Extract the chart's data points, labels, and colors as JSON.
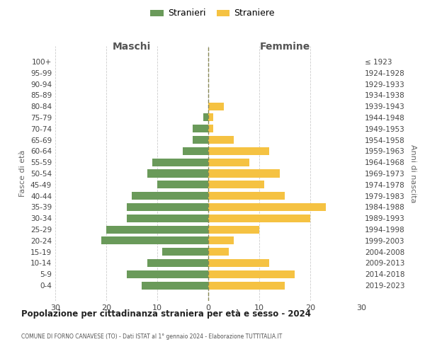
{
  "age_groups": [
    "100+",
    "95-99",
    "90-94",
    "85-89",
    "80-84",
    "75-79",
    "70-74",
    "65-69",
    "60-64",
    "55-59",
    "50-54",
    "45-49",
    "40-44",
    "35-39",
    "30-34",
    "25-29",
    "20-24",
    "15-19",
    "10-14",
    "5-9",
    "0-4"
  ],
  "birth_years": [
    "≤ 1923",
    "1924-1928",
    "1929-1933",
    "1934-1938",
    "1939-1943",
    "1944-1948",
    "1949-1953",
    "1954-1958",
    "1959-1963",
    "1964-1968",
    "1969-1973",
    "1974-1978",
    "1979-1983",
    "1984-1988",
    "1989-1993",
    "1994-1998",
    "1999-2003",
    "2004-2008",
    "2009-2013",
    "2014-2018",
    "2019-2023"
  ],
  "males": [
    0,
    0,
    0,
    0,
    0,
    1,
    3,
    3,
    5,
    11,
    12,
    10,
    15,
    16,
    16,
    20,
    21,
    9,
    12,
    16,
    13
  ],
  "females": [
    0,
    0,
    0,
    0,
    3,
    1,
    1,
    5,
    12,
    8,
    14,
    11,
    15,
    23,
    20,
    10,
    5,
    4,
    12,
    17,
    15
  ],
  "male_color": "#6a9a5a",
  "female_color": "#f5c242",
  "title": "Popolazione per cittadinanza straniera per età e sesso - 2024",
  "subtitle": "COMUNE DI FORNO CANAVESE (TO) - Dati ISTAT al 1° gennaio 2024 - Elaborazione TUTTITALIA.IT",
  "xlabel_left": "Maschi",
  "xlabel_right": "Femmine",
  "ylabel_left": "Fasce di età",
  "ylabel_right": "Anni di nascita",
  "legend_male": "Stranieri",
  "legend_female": "Straniere",
  "xlim": 30,
  "background_color": "#ffffff",
  "grid_color": "#cccccc"
}
